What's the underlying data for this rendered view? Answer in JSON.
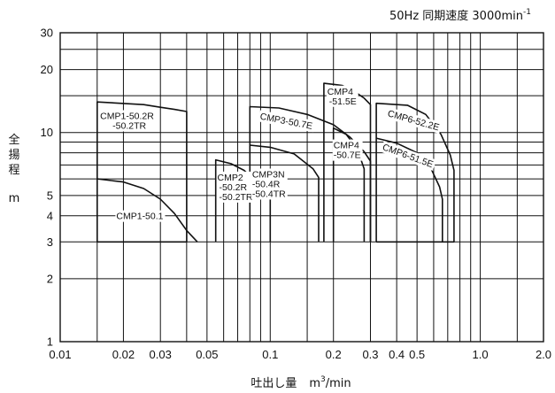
{
  "header": {
    "speed": "50Hz 同期速度 3000min",
    "speed_sup": "-1"
  },
  "chart_data": {
    "type": "line",
    "x_scale": "log",
    "y_scale": "log",
    "xlim": [
      0.01,
      2.0
    ],
    "ylim": [
      1,
      30
    ],
    "xlabel": "吐出し量",
    "xlabel_unit_base": "m",
    "xlabel_unit_sup": "3",
    "xlabel_unit_tail": "/min",
    "ylabel": [
      "全",
      "揚",
      "程"
    ],
    "ylabel_unit": "m",
    "x_tick_labels": [
      {
        "v": 0.01,
        "t": "0.01"
      },
      {
        "v": 0.02,
        "t": "0.02"
      },
      {
        "v": 0.03,
        "t": "0.03"
      },
      {
        "v": 0.05,
        "t": "0.05"
      },
      {
        "v": 0.1,
        "t": "0.1"
      },
      {
        "v": 0.2,
        "t": "0.2"
      },
      {
        "v": 0.3,
        "t": "0.3"
      },
      {
        "v": 0.4,
        "t": "0.4"
      },
      {
        "v": 0.5,
        "t": "0.5"
      },
      {
        "v": 1.0,
        "t": "1.0"
      },
      {
        "v": 2.0,
        "t": "2.0"
      }
    ],
    "y_tick_labels": [
      {
        "v": 1,
        "t": "1"
      },
      {
        "v": 2,
        "t": "2"
      },
      {
        "v": 3,
        "t": "3"
      },
      {
        "v": 4,
        "t": "4"
      },
      {
        "v": 5,
        "t": "5"
      },
      {
        "v": 10,
        "t": "10"
      },
      {
        "v": 20,
        "t": "20"
      },
      {
        "v": 30,
        "t": "30"
      }
    ],
    "x_grid": [
      0.01,
      0.015,
      0.02,
      0.03,
      0.04,
      0.05,
      0.06,
      0.07,
      0.08,
      0.09,
      0.1,
      0.15,
      0.2,
      0.3,
      0.4,
      0.5,
      0.6,
      0.7,
      0.8,
      0.9,
      1.0,
      1.5,
      2.0
    ],
    "y_grid": [
      1,
      2,
      3,
      4,
      5,
      6,
      7,
      8,
      9,
      10,
      15,
      20,
      25,
      30
    ],
    "series": [
      {
        "name": "CMP1-50.2R/-50.2TR",
        "points": [
          [
            0.015,
            3
          ],
          [
            0.015,
            14
          ],
          [
            0.025,
            13.6
          ],
          [
            0.03,
            13.2
          ],
          [
            0.035,
            12.9
          ],
          [
            0.04,
            12.6
          ],
          [
            0.04,
            3
          ],
          [
            0.015,
            3
          ]
        ]
      },
      {
        "name": "CMP1-50.1",
        "points": [
          [
            0.015,
            6
          ],
          [
            0.02,
            5.8
          ],
          [
            0.025,
            5.4
          ],
          [
            0.03,
            4.8
          ],
          [
            0.035,
            4.1
          ],
          [
            0.04,
            3.4
          ],
          [
            0.045,
            3
          ]
        ]
      },
      {
        "name": "CMP2/-50.2R/-50.2TR",
        "points": [
          [
            0.055,
            3
          ],
          [
            0.055,
            7.4
          ],
          [
            0.065,
            7.1
          ],
          [
            0.075,
            6.6
          ],
          [
            0.09,
            5.6
          ],
          [
            0.1,
            5.1
          ],
          [
            0.1,
            3
          ]
        ]
      },
      {
        "name": "CMP3N/-50.4R/-50.4TR",
        "points": [
          [
            0.08,
            3
          ],
          [
            0.08,
            8.7
          ],
          [
            0.1,
            8.5
          ],
          [
            0.13,
            7.9
          ],
          [
            0.16,
            6.7
          ],
          [
            0.17,
            6.1
          ],
          [
            0.17,
            3
          ]
        ]
      },
      {
        "name": "CMP3-50.7E",
        "points": [
          [
            0.08,
            8.7
          ],
          [
            0.08,
            13.3
          ],
          [
            0.11,
            13.1
          ],
          [
            0.15,
            12.2
          ],
          [
            0.2,
            10.9
          ],
          [
            0.24,
            9.5
          ],
          [
            0.28,
            8.1
          ],
          [
            0.3,
            7.3
          ],
          [
            0.3,
            3
          ]
        ]
      },
      {
        "name": "CMP4-51.5E",
        "points": [
          [
            0.18,
            3
          ],
          [
            0.18,
            17.2
          ],
          [
            0.22,
            16.8
          ],
          [
            0.25,
            15.8
          ],
          [
            0.28,
            14.6
          ],
          [
            0.3,
            13.6
          ],
          [
            0.3,
            3
          ]
        ]
      },
      {
        "name": "CMP4-50.7E",
        "points": [
          [
            0.2,
            3
          ],
          [
            0.2,
            10.5
          ],
          [
            0.23,
            9.8
          ],
          [
            0.26,
            8.3
          ],
          [
            0.28,
            6.7
          ],
          [
            0.28,
            3
          ]
        ]
      },
      {
        "name": "CMP6-52.2E",
        "points": [
          [
            0.32,
            3
          ],
          [
            0.32,
            13.8
          ],
          [
            0.45,
            13.5
          ],
          [
            0.55,
            12.2
          ],
          [
            0.65,
            9.8
          ],
          [
            0.72,
            7.8
          ],
          [
            0.75,
            6.6
          ],
          [
            0.75,
            3
          ],
          [
            0.32,
            3
          ]
        ]
      },
      {
        "name": "CMP6-51.5E",
        "points": [
          [
            0.32,
            9.4
          ],
          [
            0.4,
            8.9
          ],
          [
            0.5,
            8
          ],
          [
            0.58,
            6.8
          ],
          [
            0.64,
            5.5
          ],
          [
            0.66,
            4.8
          ],
          [
            0.66,
            3
          ]
        ]
      }
    ],
    "curve_labels": [
      {
        "lines": [
          "CMP1-50.2R",
          "-50.2TR"
        ],
        "x": 0.0155,
        "y": 11.6,
        "dx": [
          0,
          14
        ],
        "rot": 0
      },
      {
        "lines": [
          "CMP1-50.1"
        ],
        "x": 0.0185,
        "y": 3.85,
        "dx": [
          0
        ],
        "rot": 0
      },
      {
        "lines": [
          "CMP2",
          "-50.2R",
          "-50.2TR"
        ],
        "x": 0.056,
        "y": 5.9,
        "dx": [
          0,
          2,
          2
        ],
        "rot": 0
      },
      {
        "lines": [
          "CMP3N",
          "-50.4R",
          "-50.4TR"
        ],
        "x": 0.082,
        "y": 6.1,
        "dx": [
          0,
          0,
          0
        ],
        "rot": 0
      },
      {
        "lines": [
          "CMP3-50.7E"
        ],
        "x": 0.089,
        "y": 11.6,
        "dx": [
          0
        ],
        "rot": 11
      },
      {
        "lines": [
          "CMP4",
          "-51.5E"
        ],
        "x": 0.187,
        "y": 15.2,
        "dx": [
          0,
          2
        ],
        "rot": 0
      },
      {
        "lines": [
          "CMP4",
          "-50.7E"
        ],
        "x": 0.2,
        "y": 8.4,
        "dx": [
          0,
          0
        ],
        "rot": 0
      },
      {
        "lines": [
          "CMP6-52.2E"
        ],
        "x": 0.36,
        "y": 12.0,
        "dx": [
          0
        ],
        "rot": 16
      },
      {
        "lines": [
          "CMP6-51.5E"
        ],
        "x": 0.34,
        "y": 8.3,
        "dx": [
          0
        ],
        "rot": 20
      }
    ]
  }
}
